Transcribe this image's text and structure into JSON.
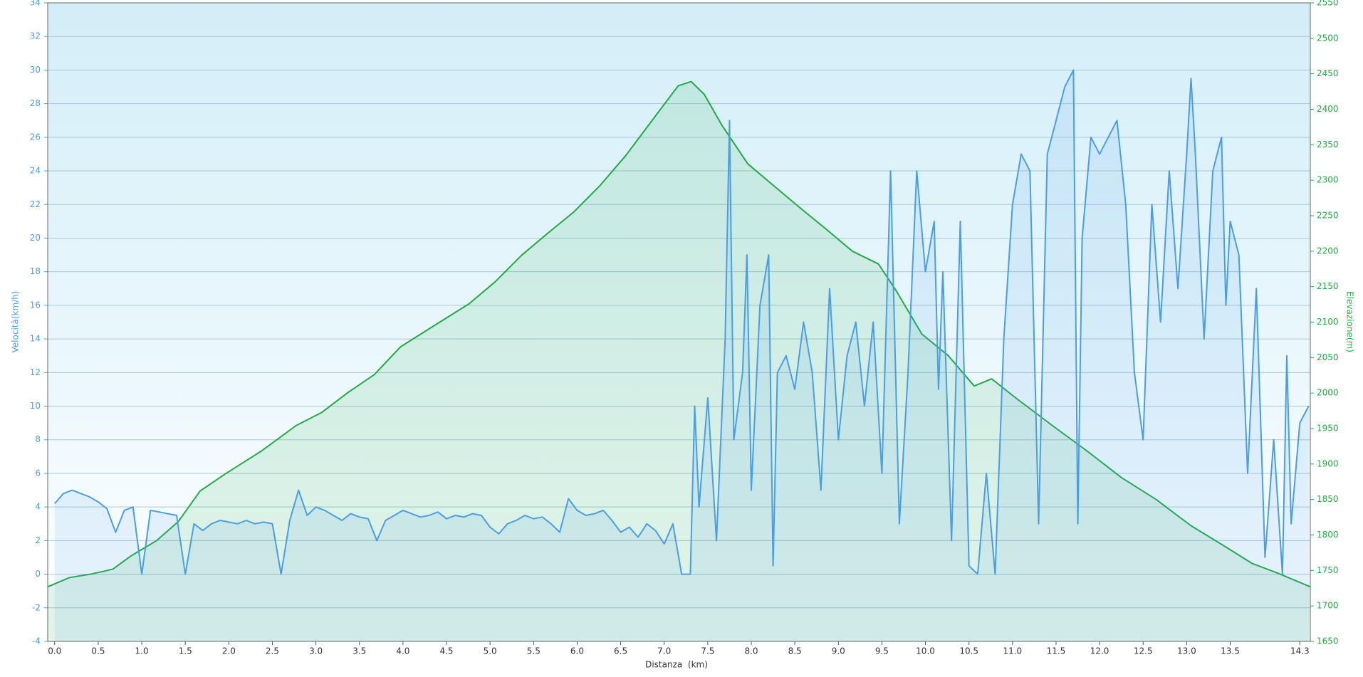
{
  "chart_data": {
    "type": "line",
    "x_label": "Distanza  (km)",
    "y_label": "Velocità(km/h)",
    "y2_label": "Elevazione(m)",
    "grid": true,
    "xlim": [
      -0.08,
      14.42
    ],
    "ylim": [
      -4,
      34
    ],
    "y2lim": [
      1650,
      2550
    ],
    "xticks": [
      {
        "value": 0,
        "label": "0.0"
      },
      0.5,
      {
        "value": 1,
        "label": "1.0"
      },
      1.5,
      {
        "value": 2,
        "label": "2.0"
      },
      2.5,
      {
        "value": 3,
        "label": "3.0"
      },
      3.5,
      {
        "value": 4,
        "label": "4.0"
      },
      4.5,
      {
        "value": 5,
        "label": "5.0"
      },
      5.5,
      {
        "value": 6,
        "label": "6.0"
      },
      6.5,
      {
        "value": 7,
        "label": "7.0"
      },
      7.5,
      {
        "value": 8,
        "label": "8.0"
      },
      8.5,
      {
        "value": 9,
        "label": "9.0"
      },
      9.5,
      {
        "value": 10,
        "label": "10.0"
      },
      10.5,
      {
        "value": 11,
        "label": "11.0"
      },
      11.5,
      {
        "value": 12,
        "label": "12.0"
      },
      12.5,
      {
        "value": 13,
        "label": "13.0"
      },
      13.5,
      14.3
    ],
    "yticks": [
      -4,
      -2,
      0,
      2,
      4,
      6,
      8,
      10,
      12,
      14,
      16,
      18,
      20,
      22,
      24,
      26,
      28,
      30,
      32,
      34
    ],
    "y2ticks": [
      1650,
      1700,
      1750,
      1800,
      1850,
      1900,
      1950,
      2000,
      2050,
      2100,
      2150,
      2200,
      2250,
      2300,
      2350,
      2400,
      2450,
      2500,
      2550
    ],
    "series": [
      {
        "color": "#4a9ee6",
        "axis": "y",
        "x": [
          0.0,
          0.1,
          0.2,
          0.3,
          0.4,
          0.5,
          0.6,
          0.7,
          0.8,
          0.9,
          1.0,
          1.1,
          1.2,
          1.3,
          1.4,
          1.5,
          1.6,
          1.7,
          1.8,
          1.9,
          2.0,
          2.1,
          2.2,
          2.3,
          2.4,
          2.5,
          2.6,
          2.7,
          2.8,
          2.9,
          3.0,
          3.1,
          3.2,
          3.3,
          3.4,
          3.5,
          3.6,
          3.7,
          3.8,
          3.9,
          4.0,
          4.1,
          4.2,
          4.3,
          4.4,
          4.5,
          4.6,
          4.7,
          4.8,
          4.9,
          5.0,
          5.1,
          5.2,
          5.3,
          5.4,
          5.5,
          5.6,
          5.7,
          5.8,
          5.9,
          6.0,
          6.1,
          6.2,
          6.3,
          6.4,
          6.5,
          6.6,
          6.7,
          6.8,
          6.9,
          7.0,
          7.1,
          7.2,
          7.3,
          7.35,
          7.4,
          7.5,
          7.6,
          7.7,
          7.75,
          7.8,
          7.9,
          7.95,
          8.0,
          8.1,
          8.2,
          8.25,
          8.3,
          8.4,
          8.5,
          8.6,
          8.7,
          8.8,
          8.9,
          9.0,
          9.1,
          9.2,
          9.3,
          9.4,
          9.5,
          9.6,
          9.7,
          9.8,
          9.9,
          10.0,
          10.1,
          10.15,
          10.2,
          10.3,
          10.4,
          10.5,
          10.6,
          10.7,
          10.8,
          10.9,
          11.0,
          11.1,
          11.2,
          11.3,
          11.4,
          11.5,
          11.6,
          11.7,
          11.75,
          11.8,
          11.9,
          12.0,
          12.1,
          12.2,
          12.3,
          12.4,
          12.5,
          12.6,
          12.7,
          12.8,
          12.9,
          13.0,
          13.05,
          13.1,
          13.2,
          13.3,
          13.4,
          13.45,
          13.5,
          13.6,
          13.7,
          13.8,
          13.9,
          14.0,
          14.1,
          14.15,
          14.2,
          14.3,
          14.4
        ],
        "values": [
          4.2,
          4.8,
          5.0,
          4.8,
          4.6,
          4.3,
          3.9,
          2.5,
          3.8,
          4.0,
          0.0,
          3.8,
          3.7,
          3.6,
          3.5,
          0.0,
          3.0,
          2.6,
          3.0,
          3.2,
          3.1,
          3.0,
          3.2,
          3.0,
          3.1,
          3.0,
          0.0,
          3.2,
          5.0,
          3.5,
          4.0,
          3.8,
          3.5,
          3.2,
          3.6,
          3.4,
          3.3,
          2.0,
          3.2,
          3.5,
          3.8,
          3.6,
          3.4,
          3.5,
          3.7,
          3.3,
          3.5,
          3.4,
          3.6,
          3.5,
          2.8,
          2.4,
          3.0,
          3.2,
          3.5,
          3.3,
          3.4,
          3.0,
          2.5,
          4.5,
          3.8,
          3.5,
          3.6,
          3.8,
          3.2,
          2.5,
          2.8,
          2.2,
          3.0,
          2.6,
          1.8,
          3.0,
          0.0,
          0.0,
          10.0,
          4.0,
          10.5,
          2.0,
          14,
          27,
          8,
          12,
          19,
          5,
          16,
          19,
          0.5,
          12,
          13,
          11,
          15,
          12,
          5,
          17,
          8,
          13,
          15,
          10,
          15,
          6,
          24,
          3,
          12,
          24,
          18,
          21,
          11,
          18,
          2,
          21,
          0.5,
          0,
          6,
          0,
          14,
          22,
          25,
          24,
          3,
          25,
          27,
          29,
          30,
          3,
          20,
          26,
          25,
          26,
          27,
          22,
          12,
          8,
          22,
          15,
          24,
          17,
          25,
          29.5,
          25,
          14,
          24,
          26,
          16,
          21,
          19,
          6,
          17,
          1,
          8,
          0,
          13,
          3,
          9,
          10
        ]
      },
      {
        "color": "#22aa44",
        "axis": "y2",
        "x": [
          -0.08,
          0.17,
          0.42,
          0.57,
          0.67,
          0.87,
          1.17,
          1.42,
          1.67,
          1.97,
          2.37,
          2.77,
          3.07,
          3.37,
          3.67,
          3.97,
          4.37,
          4.76,
          5.06,
          5.36,
          5.66,
          5.96,
          6.26,
          6.56,
          6.86,
          7.16,
          7.31,
          7.46,
          7.66,
          7.96,
          8.26,
          8.56,
          8.86,
          9.16,
          9.46,
          9.66,
          9.96,
          10.26,
          10.56,
          10.76,
          11.06,
          11.46,
          11.86,
          12.25,
          12.65,
          13.05,
          13.45,
          13.75,
          14.05,
          14.42
        ],
        "values": [
          1727,
          1740,
          1745,
          1749,
          1752,
          1770,
          1792,
          1819,
          1862,
          1887,
          1918,
          1954,
          1973,
          2001,
          2026,
          2065,
          2096,
          2126,
          2157,
          2194,
          2225,
          2255,
          2292,
          2335,
          2384,
          2433,
          2439,
          2421,
          2378,
          2323,
          2292,
          2261,
          2231,
          2200,
          2182,
          2145,
          2083,
          2053,
          2010,
          2020,
          1991,
          1954,
          1918,
          1881,
          1850,
          1813,
          1783,
          1760,
          1746,
          1727
        ]
      }
    ]
  }
}
